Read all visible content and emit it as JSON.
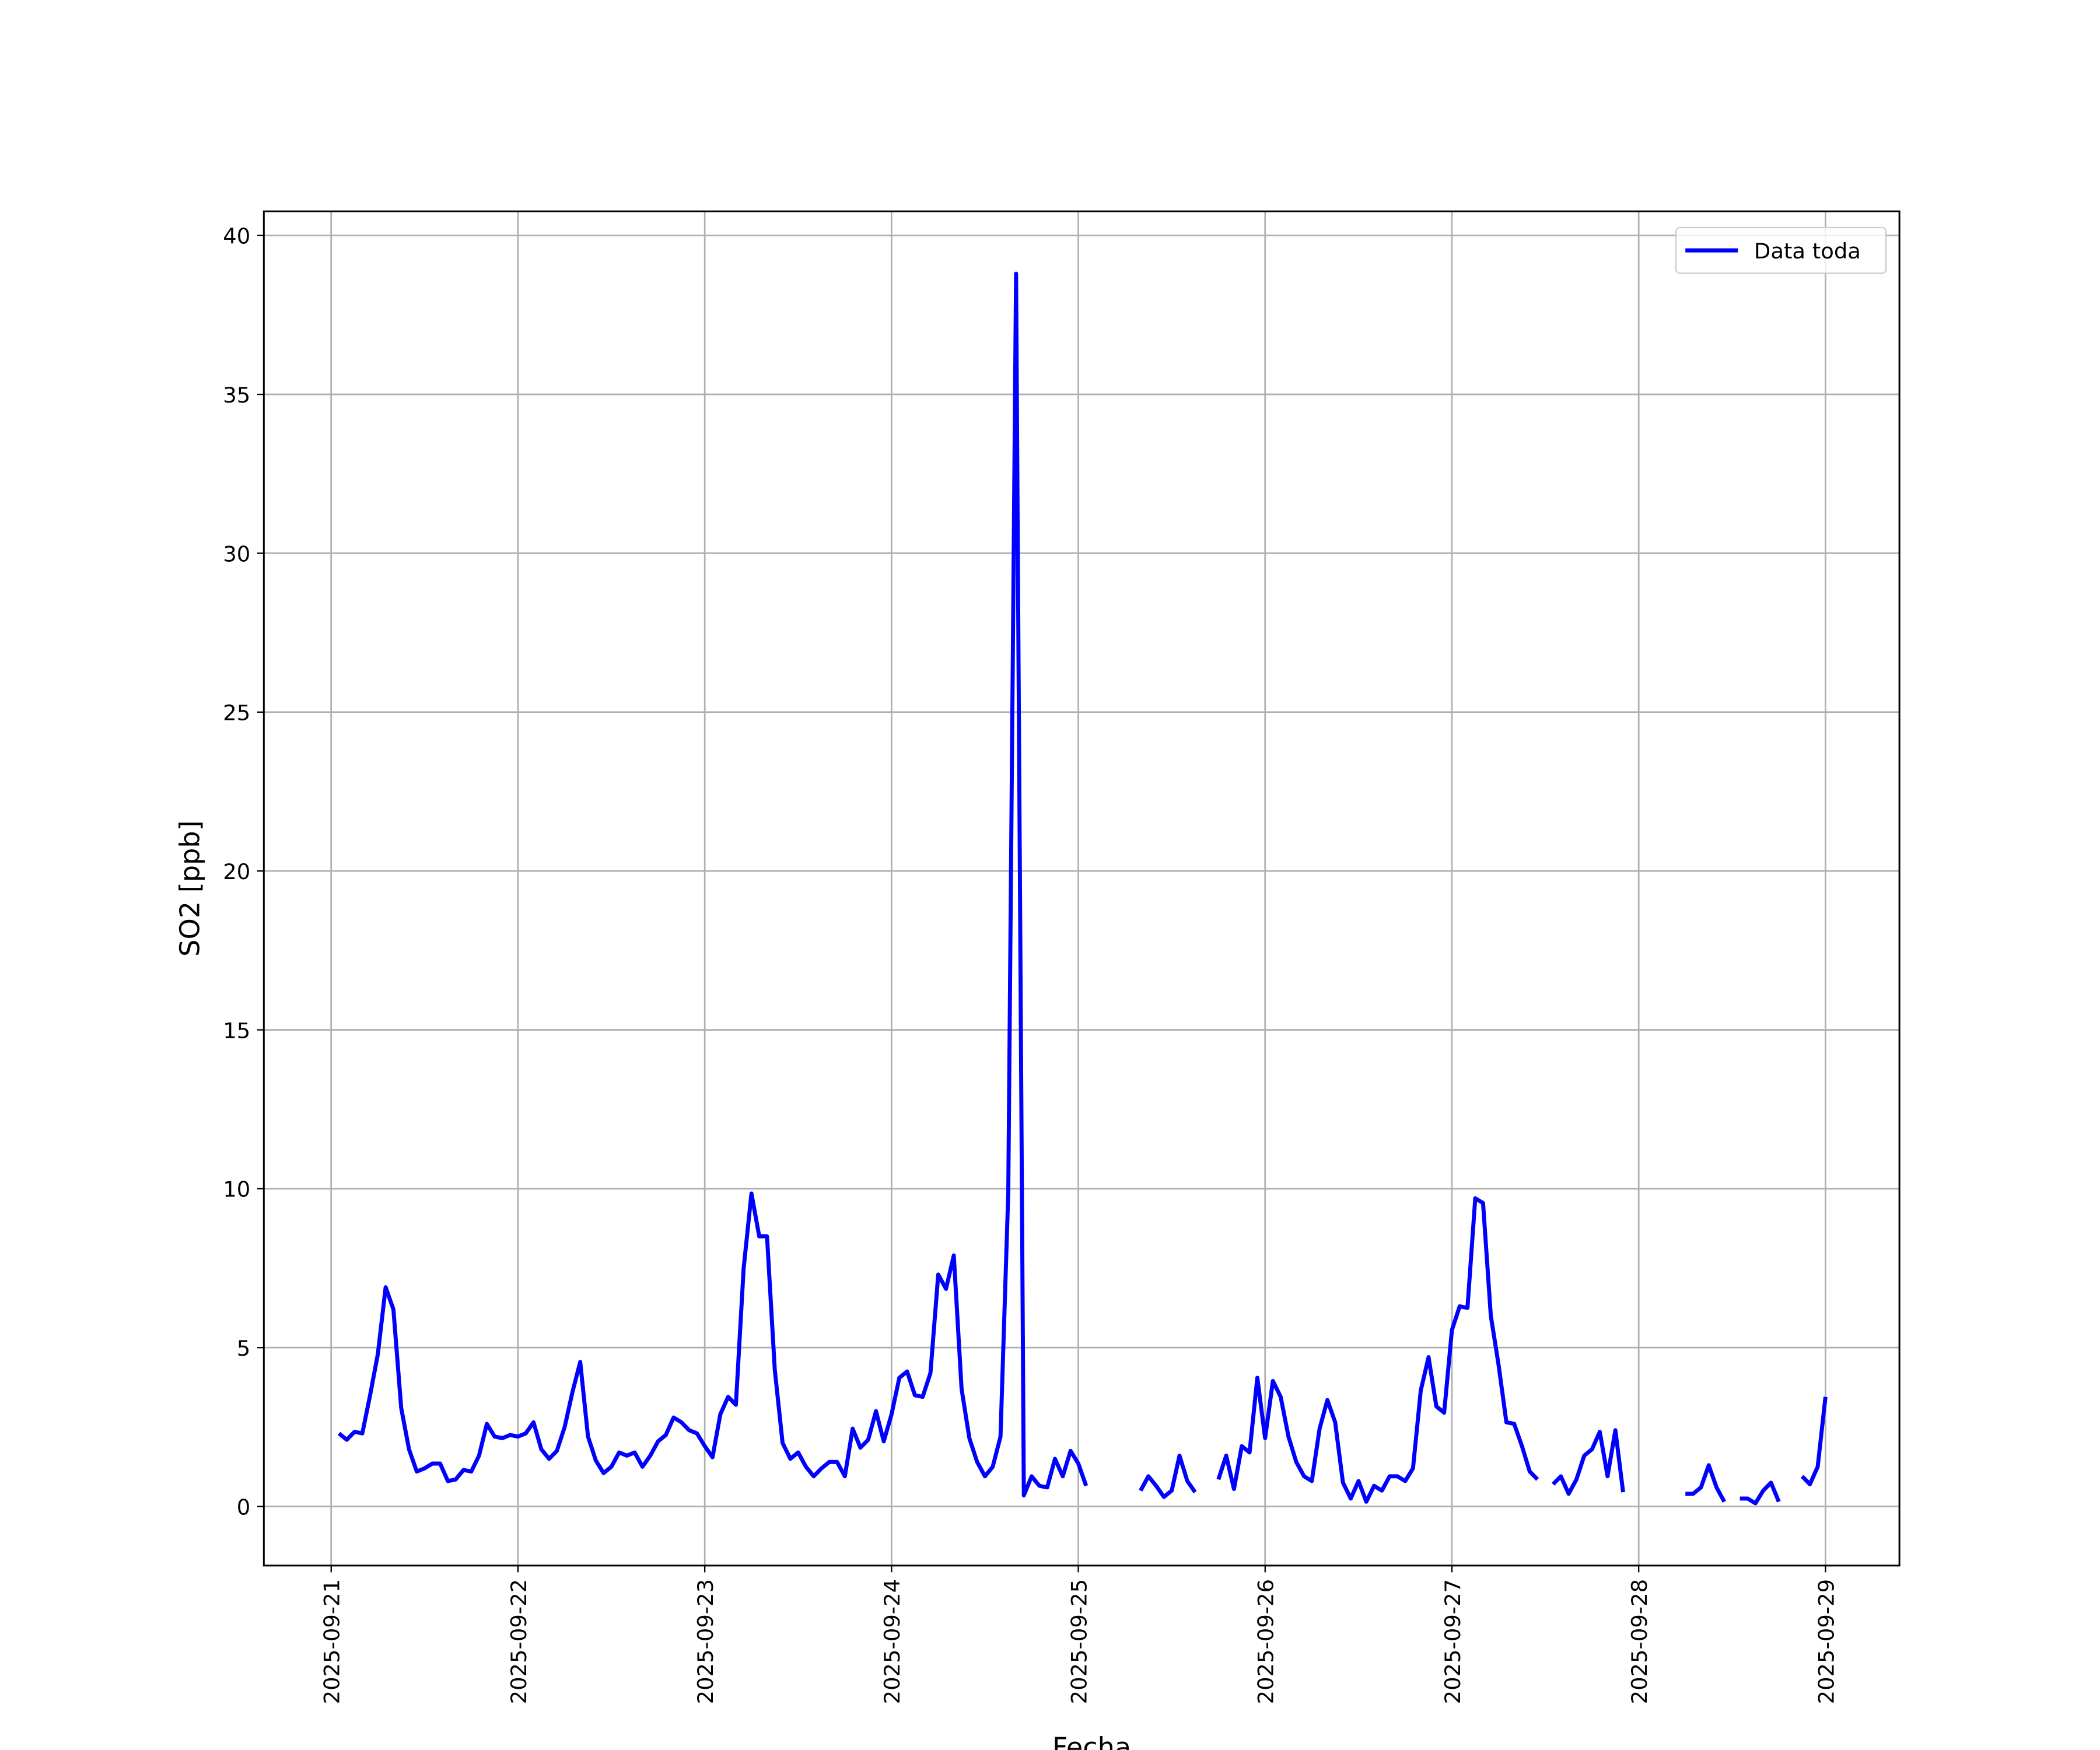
{
  "chart_data": {
    "type": "line",
    "xlabel": "Fecha",
    "ylabel": "SO2 [ppb]",
    "x": [
      "2025-09-21 01:00",
      "2025-09-21 02:00",
      "2025-09-21 03:00",
      "2025-09-21 04:00",
      "2025-09-21 05:00",
      "2025-09-21 06:00",
      "2025-09-21 07:00",
      "2025-09-21 08:00",
      "2025-09-21 09:00",
      "2025-09-21 10:00",
      "2025-09-21 11:00",
      "2025-09-21 12:00",
      "2025-09-21 13:00",
      "2025-09-21 14:00",
      "2025-09-21 15:00",
      "2025-09-21 16:00",
      "2025-09-21 17:00",
      "2025-09-21 18:00",
      "2025-09-21 19:00",
      "2025-09-21 20:00",
      "2025-09-21 21:00",
      "2025-09-21 22:00",
      "2025-09-21 23:00",
      "2025-09-22 00:00",
      "2025-09-22 01:00",
      "2025-09-22 02:00",
      "2025-09-22 03:00",
      "2025-09-22 04:00",
      "2025-09-22 05:00",
      "2025-09-22 06:00",
      "2025-09-22 07:00",
      "2025-09-22 08:00",
      "2025-09-22 09:00",
      "2025-09-22 10:00",
      "2025-09-22 11:00",
      "2025-09-22 12:00",
      "2025-09-22 13:00",
      "2025-09-22 14:00",
      "2025-09-22 15:00",
      "2025-09-22 16:00",
      "2025-09-22 17:00",
      "2025-09-22 18:00",
      "2025-09-22 19:00",
      "2025-09-22 20:00",
      "2025-09-22 21:00",
      "2025-09-22 22:00",
      "2025-09-22 23:00",
      "2025-09-23 00:00",
      "2025-09-23 01:00",
      "2025-09-23 02:00",
      "2025-09-23 03:00",
      "2025-09-23 04:00",
      "2025-09-23 05:00",
      "2025-09-23 06:00",
      "2025-09-23 07:00",
      "2025-09-23 08:00",
      "2025-09-23 09:00",
      "2025-09-23 10:00",
      "2025-09-23 11:00",
      "2025-09-23 12:00",
      "2025-09-23 13:00",
      "2025-09-23 14:00",
      "2025-09-23 15:00",
      "2025-09-23 16:00",
      "2025-09-23 17:00",
      "2025-09-23 18:00",
      "2025-09-23 19:00",
      "2025-09-23 20:00",
      "2025-09-23 21:00",
      "2025-09-23 22:00",
      "2025-09-23 23:00",
      "2025-09-24 00:00",
      "2025-09-24 01:00",
      "2025-09-24 02:00",
      "2025-09-24 03:00",
      "2025-09-24 04:00",
      "2025-09-24 05:00",
      "2025-09-24 06:00",
      "2025-09-24 07:00",
      "2025-09-24 08:00",
      "2025-09-24 09:00",
      "2025-09-24 10:00",
      "2025-09-24 11:00",
      "2025-09-24 12:00",
      "2025-09-24 13:00",
      "2025-09-24 14:00",
      "2025-09-24 15:00",
      "2025-09-24 16:00",
      "2025-09-24 17:00",
      "2025-09-24 18:00",
      "2025-09-24 19:00",
      "2025-09-24 20:00",
      "2025-09-24 21:00",
      "2025-09-24 22:00",
      "2025-09-24 23:00",
      "2025-09-25 00:00",
      "2025-09-25 01:00",
      "2025-09-25 02:00",
      "2025-09-25 03:00",
      "2025-09-25 04:00",
      "2025-09-25 05:00",
      "2025-09-25 06:00",
      "2025-09-25 07:00",
      "2025-09-25 08:00",
      "2025-09-25 09:00",
      "2025-09-25 10:00",
      "2025-09-25 11:00",
      "2025-09-25 12:00",
      "2025-09-25 13:00",
      "2025-09-25 14:00",
      "2025-09-25 15:00",
      "2025-09-25 16:00",
      "2025-09-25 17:00",
      "2025-09-25 18:00",
      "2025-09-25 19:00",
      "2025-09-25 20:00",
      "2025-09-25 21:00",
      "2025-09-25 22:00",
      "2025-09-25 23:00",
      "2025-09-26 00:00",
      "2025-09-26 01:00",
      "2025-09-26 02:00",
      "2025-09-26 03:00",
      "2025-09-26 04:00",
      "2025-09-26 05:00",
      "2025-09-26 06:00",
      "2025-09-26 07:00",
      "2025-09-26 08:00",
      "2025-09-26 09:00",
      "2025-09-26 10:00",
      "2025-09-26 11:00",
      "2025-09-26 12:00",
      "2025-09-26 13:00",
      "2025-09-26 14:00",
      "2025-09-26 15:00",
      "2025-09-26 16:00",
      "2025-09-26 17:00",
      "2025-09-26 18:00",
      "2025-09-26 19:00",
      "2025-09-26 20:00",
      "2025-09-26 21:00",
      "2025-09-26 22:00",
      "2025-09-26 23:00",
      "2025-09-27 00:00",
      "2025-09-27 01:00",
      "2025-09-27 02:00",
      "2025-09-27 03:00",
      "2025-09-27 04:00",
      "2025-09-27 05:00",
      "2025-09-27 06:00",
      "2025-09-27 07:00",
      "2025-09-27 08:00",
      "2025-09-27 09:00",
      "2025-09-27 10:00",
      "2025-09-27 11:00",
      "2025-09-27 12:00",
      "2025-09-27 13:00",
      "2025-09-27 14:00",
      "2025-09-27 15:00",
      "2025-09-27 16:00",
      "2025-09-27 17:00",
      "2025-09-27 18:00",
      "2025-09-27 19:00",
      "2025-09-27 20:00",
      "2025-09-27 21:00",
      "2025-09-27 22:00",
      "2025-09-27 23:00",
      "2025-09-28 00:00",
      "2025-09-28 01:00",
      "2025-09-28 02:00",
      "2025-09-28 03:00",
      "2025-09-28 04:00",
      "2025-09-28 05:00",
      "2025-09-28 06:00",
      "2025-09-28 07:00",
      "2025-09-28 08:00",
      "2025-09-28 09:00",
      "2025-09-28 10:00",
      "2025-09-28 11:00",
      "2025-09-28 12:00",
      "2025-09-28 13:00",
      "2025-09-28 14:00",
      "2025-09-28 15:00",
      "2025-09-28 16:00",
      "2025-09-28 17:00",
      "2025-09-28 18:00",
      "2025-09-28 19:00",
      "2025-09-28 20:00",
      "2025-09-28 21:00",
      "2025-09-28 22:00",
      "2025-09-28 23:00",
      "2025-09-29 00:00"
    ],
    "series": [
      {
        "name": "Data toda",
        "color": "#0000ff",
        "values": [
          2.3,
          2.1,
          2.35,
          2.3,
          3.5,
          4.8,
          6.9,
          6.2,
          3.1,
          1.8,
          1.1,
          1.2,
          1.35,
          1.35,
          0.8,
          0.85,
          1.15,
          1.1,
          1.6,
          2.6,
          2.2,
          2.15,
          2.25,
          2.2,
          2.3,
          2.65,
          1.8,
          1.5,
          1.75,
          2.5,
          3.6,
          4.55,
          2.2,
          1.45,
          1.05,
          1.25,
          1.7,
          1.6,
          1.7,
          1.25,
          1.6,
          2.05,
          2.25,
          2.8,
          2.65,
          2.4,
          2.3,
          1.9,
          1.55,
          2.9,
          3.45,
          3.2,
          7.5,
          9.85,
          8.5,
          8.5,
          4.3,
          2.0,
          1.5,
          1.7,
          1.25,
          0.95,
          1.2,
          1.4,
          1.4,
          0.95,
          2.45,
          1.85,
          2.1,
          3.0,
          2.05,
          2.9,
          4.05,
          4.25,
          3.5,
          3.45,
          4.2,
          7.3,
          6.85,
          7.9,
          3.7,
          2.15,
          1.4,
          0.95,
          1.25,
          2.2,
          9.9,
          38.8,
          0.35,
          0.95,
          0.65,
          0.6,
          1.5,
          0.95,
          1.75,
          1.35,
          0.65,
          null,
          null,
          null,
          null,
          null,
          null,
          0.5,
          0.95,
          0.65,
          0.3,
          0.5,
          1.6,
          0.8,
          0.45,
          null,
          null,
          0.85,
          1.6,
          0.55,
          1.9,
          1.7,
          4.05,
          2.15,
          3.95,
          3.45,
          2.2,
          1.4,
          0.95,
          0.8,
          2.45,
          3.35,
          2.65,
          0.75,
          0.25,
          0.8,
          0.15,
          0.65,
          0.5,
          0.95,
          0.95,
          0.8,
          1.2,
          3.65,
          4.7,
          3.15,
          2.95,
          5.55,
          6.3,
          6.25,
          9.7,
          9.55,
          6.0,
          4.45,
          2.65,
          2.6,
          1.9,
          1.1,
          0.85,
          null,
          0.7,
          0.95,
          0.4,
          0.85,
          1.6,
          1.8,
          2.35,
          0.95,
          2.4,
          0.45,
          null,
          null,
          null,
          null,
          null,
          null,
          null,
          0.4,
          0.4,
          0.6,
          1.3,
          0.6,
          0.15,
          null,
          0.25,
          0.25,
          0.1,
          0.5,
          0.75,
          0.15,
          null,
          null,
          0.95,
          0.7,
          1.25,
          3.45
        ]
      }
    ],
    "xlim": [
      "2025-09-20 15:21",
      "2025-09-29 09:30"
    ],
    "xticks": [
      "2025-09-21",
      "2025-09-22",
      "2025-09-23",
      "2025-09-24",
      "2025-09-25",
      "2025-09-26",
      "2025-09-27",
      "2025-09-28",
      "2025-09-29"
    ],
    "ylim": [
      -1.86,
      40.76
    ],
    "yticks": [
      0,
      5,
      10,
      15,
      20,
      25,
      30,
      35,
      40
    ],
    "grid": true,
    "legend": "upper right"
  }
}
